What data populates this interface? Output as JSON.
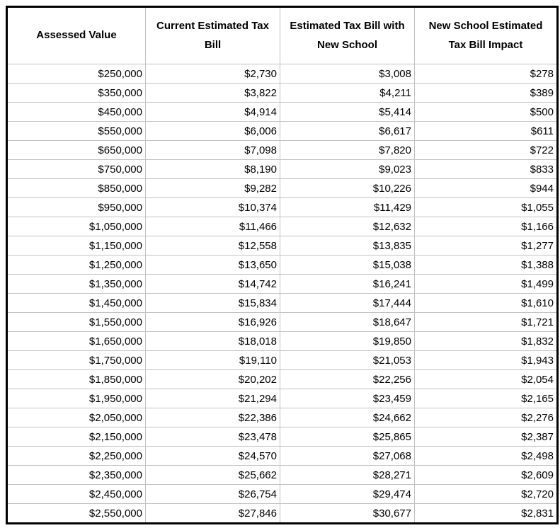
{
  "table": {
    "columns": [
      "Assessed Value",
      "Current Estimated Tax Bill",
      "Estimated Tax Bill with New School",
      "New School Estimated Tax Bill Impact"
    ],
    "column_keys": [
      "assessed-value",
      "current-estimated-tax-bill",
      "estimated-tax-bill-with-new-school",
      "new-school-estimated-tax-bill-impact"
    ],
    "rows": [
      [
        "$250,000",
        "$2,730",
        "$3,008",
        "$278"
      ],
      [
        "$350,000",
        "$3,822",
        "$4,211",
        "$389"
      ],
      [
        "$450,000",
        "$4,914",
        "$5,414",
        "$500"
      ],
      [
        "$550,000",
        "$6,006",
        "$6,617",
        "$611"
      ],
      [
        "$650,000",
        "$7,098",
        "$7,820",
        "$722"
      ],
      [
        "$750,000",
        "$8,190",
        "$9,023",
        "$833"
      ],
      [
        "$850,000",
        "$9,282",
        "$10,226",
        "$944"
      ],
      [
        "$950,000",
        "$10,374",
        "$11,429",
        "$1,055"
      ],
      [
        "$1,050,000",
        "$11,466",
        "$12,632",
        "$1,166"
      ],
      [
        "$1,150,000",
        "$12,558",
        "$13,835",
        "$1,277"
      ],
      [
        "$1,250,000",
        "$13,650",
        "$15,038",
        "$1,388"
      ],
      [
        "$1,350,000",
        "$14,742",
        "$16,241",
        "$1,499"
      ],
      [
        "$1,450,000",
        "$15,834",
        "$17,444",
        "$1,610"
      ],
      [
        "$1,550,000",
        "$16,926",
        "$18,647",
        "$1,721"
      ],
      [
        "$1,650,000",
        "$18,018",
        "$19,850",
        "$1,832"
      ],
      [
        "$1,750,000",
        "$19,110",
        "$21,053",
        "$1,943"
      ],
      [
        "$1,850,000",
        "$20,202",
        "$22,256",
        "$2,054"
      ],
      [
        "$1,950,000",
        "$21,294",
        "$23,459",
        "$2,165"
      ],
      [
        "$2,050,000",
        "$22,386",
        "$24,662",
        "$2,276"
      ],
      [
        "$2,150,000",
        "$23,478",
        "$25,865",
        "$2,387"
      ],
      [
        "$2,250,000",
        "$24,570",
        "$27,068",
        "$2,498"
      ],
      [
        "$2,350,000",
        "$25,662",
        "$28,271",
        "$2,609"
      ],
      [
        "$2,450,000",
        "$26,754",
        "$29,474",
        "$2,720"
      ],
      [
        "$2,550,000",
        "$27,846",
        "$30,677",
        "$2,831"
      ]
    ]
  },
  "colors": {
    "text": "#000000",
    "gridline": "#c2c2c2",
    "outer_border": "#000000",
    "background": "#ffffff"
  },
  "chart_data": {
    "type": "table",
    "title": "",
    "categories": [
      250000,
      350000,
      450000,
      550000,
      650000,
      750000,
      850000,
      950000,
      1050000,
      1150000,
      1250000,
      1350000,
      1450000,
      1550000,
      1650000,
      1750000,
      1850000,
      1950000,
      2050000,
      2150000,
      2250000,
      2350000,
      2450000,
      2550000
    ],
    "series": [
      {
        "name": "Current Estimated Tax Bill",
        "values": [
          2730,
          3822,
          4914,
          6006,
          7098,
          8190,
          9282,
          10374,
          11466,
          12558,
          13650,
          14742,
          15834,
          16926,
          18018,
          19110,
          20202,
          21294,
          22386,
          23478,
          24570,
          25662,
          26754,
          27846
        ]
      },
      {
        "name": "Estimated Tax Bill with New School",
        "values": [
          3008,
          4211,
          5414,
          6617,
          7820,
          9023,
          10226,
          11429,
          12632,
          13835,
          15038,
          16241,
          17444,
          18647,
          19850,
          21053,
          22256,
          23459,
          24662,
          25865,
          27068,
          28271,
          29474,
          30677
        ]
      },
      {
        "name": "New School Estimated Tax Bill Impact",
        "values": [
          278,
          389,
          500,
          611,
          722,
          833,
          944,
          1055,
          1166,
          1277,
          1388,
          1499,
          1610,
          1721,
          1832,
          1943,
          2054,
          2165,
          2276,
          2387,
          2498,
          2609,
          2720,
          2831
        ]
      }
    ]
  }
}
